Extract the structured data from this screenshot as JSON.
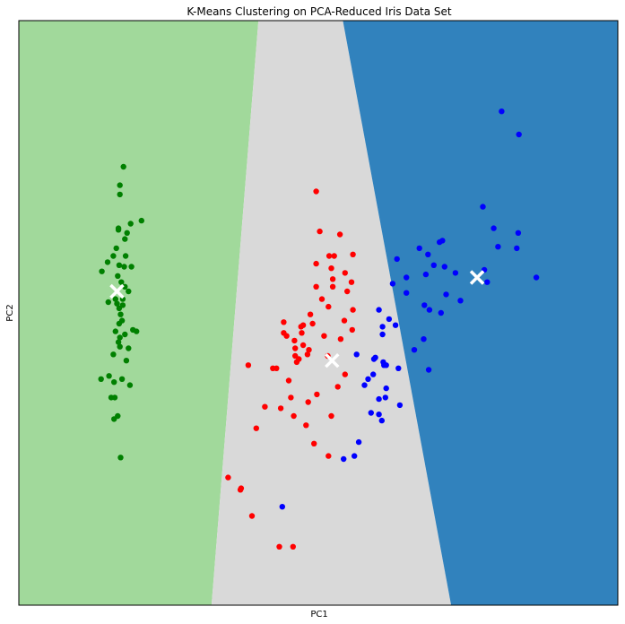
{
  "chart_data": {
    "type": "scatter",
    "title": "K-Means Clustering on PCA-Reduced Iris Data Set",
    "xlabel": "PC1",
    "ylabel": "PC2",
    "xlim": [
      -4.0,
      4.3
    ],
    "ylim": [
      -1.85,
      1.95
    ],
    "grid": false,
    "ticks_shown": false,
    "regions": [
      {
        "name": "cluster-0",
        "color": "#a1d99b"
      },
      {
        "name": "cluster-1",
        "color": "#d9d9d9"
      },
      {
        "name": "cluster-2",
        "color": "#3182bd"
      }
    ],
    "boundaries": [
      {
        "between": [
          "cluster-0",
          "cluster-1"
        ],
        "top_x": -0.68,
        "bottom_x": -1.33
      },
      {
        "between": [
          "cluster-1",
          "cluster-2"
        ],
        "top_x": 0.49,
        "bottom_x": 1.99
      }
    ],
    "series": [
      {
        "color": "#008000",
        "x": [
          -2.55,
          -2.6,
          -2.6,
          -2.3,
          -2.45,
          -2.62,
          -2.62,
          -2.5,
          -2.53,
          -2.85,
          -2.54,
          -2.63,
          -2.56,
          -2.64,
          -2.59,
          -2.53,
          -2.58,
          -2.48,
          -2.57,
          -2.61,
          -2.42,
          -2.44,
          -2.52,
          -2.65,
          -2.68,
          -2.37,
          -2.66,
          -2.56,
          -2.53,
          -2.69,
          -2.51,
          -2.61,
          -2.77,
          -2.48,
          -2.6,
          -2.67,
          -2.63,
          -2.59,
          -2.57,
          -2.46,
          -2.62,
          -2.68,
          -2.72,
          -2.61,
          -2.75,
          -2.69,
          -2.86,
          -2.6,
          -2.66,
          -2.76
        ],
        "y": [
          1.0,
          0.88,
          0.82,
          0.65,
          0.63,
          0.6,
          0.59,
          0.57,
          0.53,
          0.32,
          0.35,
          0.29,
          0.14,
          0.11,
          0.04,
          0.22,
          0.25,
          0.19,
          0.0,
          -0.02,
          -0.06,
          0.35,
          0.42,
          0.47,
          -0.4,
          -0.07,
          -0.07,
          0.1,
          -0.09,
          -0.22,
          -0.26,
          0.36,
          0.38,
          -0.18,
          -0.17,
          -0.5,
          -0.62,
          -0.89,
          -0.38,
          -0.42,
          -0.14,
          -0.64,
          -0.5,
          0.08,
          -0.36,
          0.42,
          -0.38,
          -0.11,
          0.14,
          0.12
        ],
        "centroids": [
          [
            -2.64,
            0.19
          ]
        ]
      },
      {
        "color": "#ff0000",
        "x": [
          0.12,
          0.45,
          0.52,
          0.63,
          0.17,
          0.3,
          0.37,
          0.33,
          0.51,
          0.12,
          0.61,
          0.62,
          0.35,
          0.29,
          0.2,
          0.46,
          0.07,
          0.23,
          0.52,
          0.13,
          0.28,
          0.33,
          -0.06,
          -0.33,
          -0.06,
          -0.17,
          -0.12,
          -0.15,
          -0.48,
          -0.23,
          -0.19,
          -0.02,
          0.09,
          0.01,
          0.29,
          0.42,
          -0.59,
          -0.71,
          -0.29,
          -0.18,
          -0.33,
          -0.08,
          -0.0,
          -0.17,
          -0.26,
          -0.43,
          -0.37,
          -0.82,
          -1.1,
          -0.92,
          -0.93,
          -0.77,
          -0.39,
          -0.2,
          0.02,
          -0.09,
          0.04,
          0.12,
          0.35,
          0.55,
          0.63
        ],
        "y": [
          0.84,
          0.56,
          0.31,
          0.07,
          0.58,
          0.42,
          0.42,
          0.34,
          0.0,
          0.37,
          0.25,
          -0.06,
          0.22,
          0.09,
          0.14,
          -0.12,
          -0.02,
          -0.1,
          -0.35,
          -0.48,
          -0.23,
          -0.62,
          -0.03,
          -0.08,
          -0.16,
          -0.18,
          -0.25,
          -0.27,
          -0.31,
          -0.5,
          -0.62,
          -0.68,
          -0.8,
          -0.53,
          -0.88,
          -0.43,
          -0.56,
          -0.7,
          -0.1,
          -0.13,
          -0.01,
          -0.08,
          -0.22,
          -0.23,
          -0.39,
          -0.31,
          -0.57,
          -0.29,
          -1.02,
          -1.09,
          -1.1,
          -1.27,
          -1.47,
          -1.47,
          -0.19,
          -0.04,
          0.04,
          0.22,
          0.27,
          0.19,
          0.43
        ],
        "centroids": [
          [
            0.34,
            -0.26
          ]
        ]
      },
      {
        "color": "#0000ff",
        "x": [
          2.69,
          2.93,
          2.43,
          2.58,
          2.92,
          3.17,
          2.64,
          2.9,
          2.45,
          2.49,
          2.05,
          1.9,
          1.75,
          1.92,
          1.85,
          2.12,
          1.87,
          1.55,
          1.64,
          1.83,
          1.67,
          1.69,
          1.37,
          1.37,
          1.18,
          1.24,
          0.99,
          1.13,
          1.61,
          1.62,
          1.68,
          1.48,
          1.22,
          1.26,
          1.09,
          1.05,
          0.99,
          1.03,
          0.91,
          0.84,
          0.68,
          0.92,
          1.04,
          1.08,
          1.28,
          1.09,
          1.04,
          0.79,
          0.99,
          0.71,
          0.65,
          0.5,
          -0.35,
          0.88,
          0.94,
          1.06
        ],
        "y": [
          1.36,
          1.21,
          0.74,
          0.6,
          0.57,
          0.28,
          0.48,
          0.47,
          0.33,
          0.25,
          0.31,
          0.35,
          0.36,
          0.17,
          0.05,
          0.13,
          0.52,
          0.47,
          0.3,
          0.51,
          0.43,
          0.07,
          0.28,
          0.18,
          0.24,
          0.4,
          0.07,
          0.01,
          -0.12,
          0.1,
          -0.32,
          -0.19,
          -0.03,
          -0.31,
          -0.29,
          -0.27,
          -0.51,
          -0.65,
          -0.35,
          -0.38,
          -0.22,
          -0.25,
          -0.09,
          -0.5,
          -0.55,
          -0.44,
          -0.04,
          -0.42,
          -0.61,
          -0.79,
          -0.88,
          -0.9,
          -1.21,
          -0.6,
          -0.24,
          -0.29
        ],
        "centroids": [
          [
            2.35,
            0.28
          ]
        ]
      }
    ]
  }
}
